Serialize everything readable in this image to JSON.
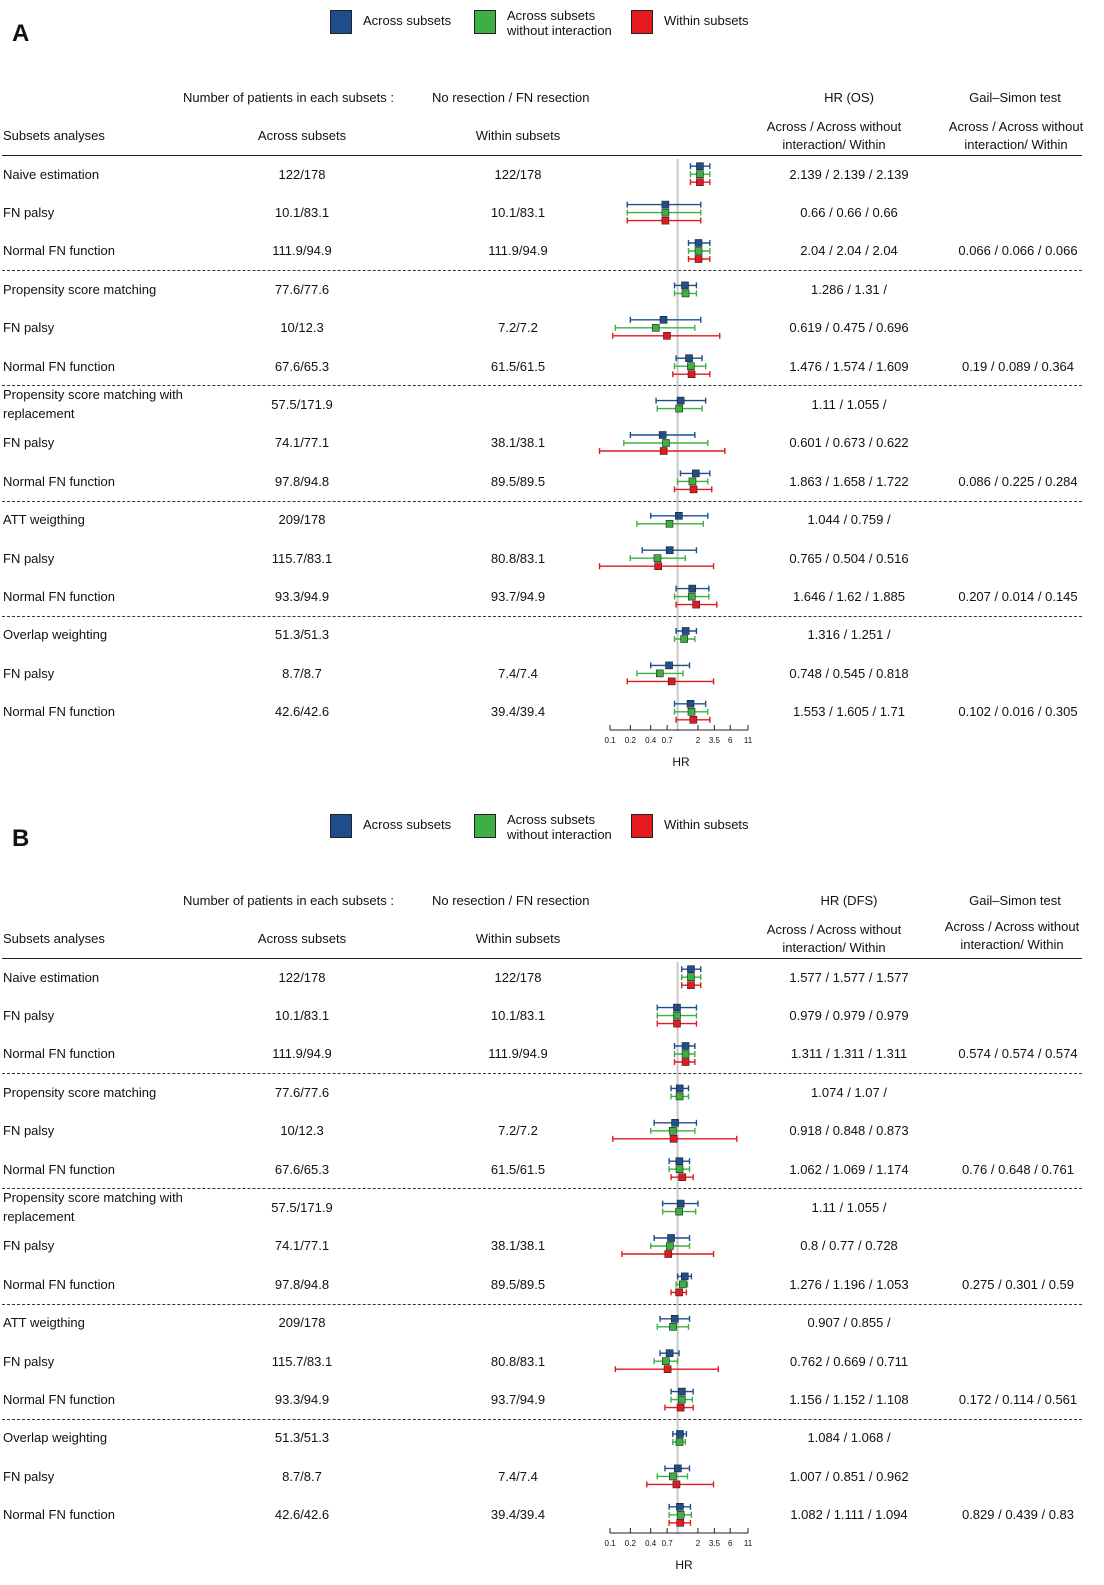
{
  "legend": {
    "across": "Across subsets",
    "across_wo_line1": "Across subsets",
    "across_wo_line2": "without interaction",
    "within": "Within subsets"
  },
  "colors": {
    "across": "#1f4e8c",
    "across_wo": "#3cb043",
    "within": "#e41a1c"
  },
  "headers": {
    "n_label": "Number of patients in each subsets :",
    "n_sub": "No resection / FN resection",
    "subsets": "Subsets analyses",
    "across": "Across subsets",
    "within": "Within subsets",
    "hr_cols": "Across / Across without interaction/ Within",
    "gs": "Gail–Simon test",
    "gs_cols": "Across / Across without interaction/ Within"
  },
  "panels": [
    {
      "label": "A",
      "hr_title": "HR (OS)",
      "axis_label": "HR",
      "rows": [
        {
          "name": "Naive estimation",
          "across": "122/178",
          "within": "122/178",
          "hr": "2.139 / 2.139 / 2.139",
          "gs": ""
        },
        {
          "name": "FN palsy",
          "across": "10.1/83.1",
          "within": "10.1/83.1",
          "hr": "0.66 / 0.66 / 0.66",
          "gs": ""
        },
        {
          "name": "Normal FN function",
          "across": "111.9/94.9",
          "within": "111.9/94.9",
          "hr": "2.04 / 2.04 / 2.04",
          "gs": "0.066 / 0.066 / 0.066"
        },
        {
          "name": "Propensity score matching",
          "across": "77.6/77.6",
          "within": "",
          "hr": "1.286 / 1.31 /",
          "gs": ""
        },
        {
          "name": "FN palsy",
          "across": "10/12.3",
          "within": "7.2/7.2",
          "hr": "0.619 / 0.475 / 0.696",
          "gs": ""
        },
        {
          "name": "Normal FN function",
          "across": "67.6/65.3",
          "within": "61.5/61.5",
          "hr": "1.476 / 1.574 / 1.609",
          "gs": "0.19 / 0.089 / 0.364"
        },
        {
          "name": "Propensity score matching with replacement",
          "across": "57.5/171.9",
          "within": "",
          "hr": "1.11 / 1.055 /",
          "gs": ""
        },
        {
          "name": "FN palsy",
          "across": "74.1/77.1",
          "within": "38.1/38.1",
          "hr": "0.601 / 0.673 / 0.622",
          "gs": ""
        },
        {
          "name": "Normal FN function",
          "across": "97.8/94.8",
          "within": "89.5/89.5",
          "hr": "1.863 / 1.658 / 1.722",
          "gs": "0.086 / 0.225 / 0.284"
        },
        {
          "name": "ATT weigthing",
          "across": "209/178",
          "within": "",
          "hr": "1.044 / 0.759 /",
          "gs": ""
        },
        {
          "name": "FN palsy",
          "across": "115.7/83.1",
          "within": "80.8/83.1",
          "hr": "0.765 / 0.504 / 0.516",
          "gs": ""
        },
        {
          "name": "Normal FN function",
          "across": "93.3/94.9",
          "within": "93.7/94.9",
          "hr": "1.646 / 1.62 / 1.885",
          "gs": "0.207 / 0.014 / 0.145"
        },
        {
          "name": "Overlap weighting",
          "across": "51.3/51.3",
          "within": "",
          "hr": "1.316 / 1.251 /",
          "gs": ""
        },
        {
          "name": "FN palsy",
          "across": "8.7/8.7",
          "within": "7.4/7.4",
          "hr": "0.748 / 0.545 / 0.818",
          "gs": ""
        },
        {
          "name": "Normal FN function",
          "across": "42.6/42.6",
          "within": "39.4/39.4",
          "hr": "1.553 / 1.605 / 1.71",
          "gs": "0.102 / 0.016 / 0.305"
        }
      ]
    },
    {
      "label": "B",
      "hr_title": "HR (DFS)",
      "axis_label": "HR",
      "rows": [
        {
          "name": "Naive estimation",
          "across": "122/178",
          "within": "122/178",
          "hr": "1.577 / 1.577 / 1.577",
          "gs": ""
        },
        {
          "name": "FN palsy",
          "across": "10.1/83.1",
          "within": "10.1/83.1",
          "hr": "0.979 / 0.979 / 0.979",
          "gs": ""
        },
        {
          "name": "Normal FN function",
          "across": "111.9/94.9",
          "within": "111.9/94.9",
          "hr": "1.311 / 1.311 / 1.311",
          "gs": "0.574 / 0.574 / 0.574"
        },
        {
          "name": "Propensity score matching",
          "across": "77.6/77.6",
          "within": "",
          "hr": "1.074 / 1.07 /",
          "gs": ""
        },
        {
          "name": "FN palsy",
          "across": "10/12.3",
          "within": "7.2/7.2",
          "hr": "0.918 / 0.848 / 0.873",
          "gs": ""
        },
        {
          "name": "Normal FN function",
          "across": "67.6/65.3",
          "within": "61.5/61.5",
          "hr": "1.062 / 1.069 / 1.174",
          "gs": "0.76 / 0.648 / 0.761"
        },
        {
          "name": "Propensity score matching with replacement",
          "across": "57.5/171.9",
          "within": "",
          "hr": "1.11 / 1.055 /",
          "gs": ""
        },
        {
          "name": "FN palsy",
          "across": "74.1/77.1",
          "within": "38.1/38.1",
          "hr": "0.8 / 0.77 / 0.728",
          "gs": ""
        },
        {
          "name": "Normal FN function",
          "across": "97.8/94.8",
          "within": "89.5/89.5",
          "hr": "1.276 / 1.196 / 1.053",
          "gs": "0.275 / 0.301 / 0.59"
        },
        {
          "name": "ATT weigthing",
          "across": "209/178",
          "within": "",
          "hr": "0.907 / 0.855 /",
          "gs": ""
        },
        {
          "name": "FN palsy",
          "across": "115.7/83.1",
          "within": "80.8/83.1",
          "hr": "0.762 / 0.669 / 0.711",
          "gs": ""
        },
        {
          "name": "Normal FN function",
          "across": "93.3/94.9",
          "within": "93.7/94.9",
          "hr": "1.156 / 1.152 / 1.108",
          "gs": "0.172 / 0.114 / 0.561"
        },
        {
          "name": "Overlap weighting",
          "across": "51.3/51.3",
          "within": "",
          "hr": "1.084 / 1.068 /",
          "gs": ""
        },
        {
          "name": "FN palsy",
          "across": "8.7/8.7",
          "within": "7.4/7.4",
          "hr": "1.007 / 0.851 / 0.962",
          "gs": ""
        },
        {
          "name": "Normal FN function",
          "across": "42.6/42.6",
          "within": "39.4/39.4",
          "hr": "1.082 / 1.111 / 1.094",
          "gs": "0.829 / 0.439 / 0.83"
        }
      ]
    }
  ],
  "chart_data": [
    {
      "type": "scatter",
      "title": "A",
      "xlabel": "HR",
      "x_scale": "log",
      "xlim": [
        0.1,
        11
      ],
      "x_ticks": [
        "0.1",
        "0.2",
        "0.4",
        "0.7",
        "2",
        "3.5",
        "6",
        "11"
      ],
      "reference_line": 1,
      "series_names": [
        "Across subsets",
        "Across subsets without interaction",
        "Within subsets"
      ],
      "estimates": [
        [
          2.139,
          2.139,
          2.139
        ],
        [
          0.66,
          0.66,
          0.66
        ],
        [
          2.04,
          2.04,
          2.04
        ],
        [
          1.286,
          1.31,
          null
        ],
        [
          0.619,
          0.475,
          0.696
        ],
        [
          1.476,
          1.574,
          1.609
        ],
        [
          1.11,
          1.055,
          null
        ],
        [
          0.601,
          0.673,
          0.622
        ],
        [
          1.863,
          1.658,
          1.722
        ],
        [
          1.044,
          0.759,
          null
        ],
        [
          0.765,
          0.504,
          0.516
        ],
        [
          1.646,
          1.62,
          1.885
        ],
        [
          1.316,
          1.251,
          null
        ],
        [
          0.748,
          0.545,
          0.818
        ],
        [
          1.553,
          1.605,
          1.71
        ]
      ],
      "ci": [
        [
          [
            1.55,
            3.0
          ],
          [
            1.55,
            3.0
          ],
          [
            1.55,
            3.0
          ]
        ],
        [
          [
            0.18,
            2.2
          ],
          [
            0.18,
            2.2
          ],
          [
            0.18,
            2.2
          ]
        ],
        [
          [
            1.45,
            3.0
          ],
          [
            1.45,
            3.0
          ],
          [
            1.45,
            3.0
          ]
        ],
        [
          [
            0.9,
            1.9
          ],
          [
            0.9,
            1.9
          ],
          null
        ],
        [
          [
            0.2,
            2.2
          ],
          [
            0.12,
            1.8
          ],
          [
            0.11,
            4.2
          ]
        ],
        [
          [
            0.95,
            2.3
          ],
          [
            0.9,
            2.6
          ],
          [
            0.85,
            3.0
          ]
        ],
        [
          [
            0.48,
            2.6
          ],
          [
            0.5,
            2.3
          ],
          null
        ],
        [
          [
            0.2,
            1.8
          ],
          [
            0.16,
            2.8
          ],
          [
            0.07,
            5.0
          ]
        ],
        [
          [
            1.1,
            3.0
          ],
          [
            1.0,
            2.8
          ],
          [
            0.9,
            3.2
          ]
        ],
        [
          [
            0.4,
            2.8
          ],
          [
            0.25,
            2.4
          ],
          null
        ],
        [
          [
            0.3,
            1.9
          ],
          [
            0.2,
            1.3
          ],
          [
            0.07,
            3.4
          ]
        ],
        [
          [
            0.95,
            2.9
          ],
          [
            0.9,
            2.9
          ],
          [
            0.95,
            3.8
          ]
        ],
        [
          [
            0.95,
            1.9
          ],
          [
            0.9,
            1.8
          ],
          null
        ],
        [
          [
            0.4,
            1.5
          ],
          [
            0.25,
            1.2
          ],
          [
            0.18,
            3.4
          ]
        ],
        [
          [
            0.9,
            2.6
          ],
          [
            0.9,
            2.8
          ],
          [
            0.95,
            3.0
          ]
        ]
      ]
    },
    {
      "type": "scatter",
      "title": "B",
      "xlabel": "HR",
      "x_scale": "log",
      "xlim": [
        0.1,
        11
      ],
      "x_ticks": [
        "0.1",
        "0.2",
        "0.4",
        "0.7",
        "2",
        "3.5",
        "6",
        "11"
      ],
      "reference_line": 1,
      "series_names": [
        "Across subsets",
        "Across subsets without interaction",
        "Within subsets"
      ],
      "estimates": [
        [
          1.577,
          1.577,
          1.577
        ],
        [
          0.979,
          0.979,
          0.979
        ],
        [
          1.311,
          1.311,
          1.311
        ],
        [
          1.074,
          1.07,
          null
        ],
        [
          0.918,
          0.848,
          0.873
        ],
        [
          1.062,
          1.069,
          1.174
        ],
        [
          1.11,
          1.055,
          null
        ],
        [
          0.8,
          0.77,
          0.728
        ],
        [
          1.276,
          1.196,
          1.053
        ],
        [
          0.907,
          0.855,
          null
        ],
        [
          0.762,
          0.669,
          0.711
        ],
        [
          1.156,
          1.152,
          1.108
        ],
        [
          1.084,
          1.068,
          null
        ],
        [
          1.007,
          0.851,
          0.962
        ],
        [
          1.082,
          1.111,
          1.094
        ]
      ],
      "ci": [
        [
          [
            1.15,
            2.2
          ],
          [
            1.15,
            2.2
          ],
          [
            1.15,
            2.2
          ]
        ],
        [
          [
            0.5,
            1.9
          ],
          [
            0.5,
            1.9
          ],
          [
            0.5,
            1.9
          ]
        ],
        [
          [
            0.9,
            1.8
          ],
          [
            0.9,
            1.8
          ],
          [
            0.9,
            1.8
          ]
        ],
        [
          [
            0.8,
            1.45
          ],
          [
            0.8,
            1.45
          ],
          null
        ],
        [
          [
            0.45,
            1.9
          ],
          [
            0.4,
            1.8
          ],
          [
            0.11,
            7.5
          ]
        ],
        [
          [
            0.75,
            1.5
          ],
          [
            0.75,
            1.5
          ],
          [
            0.8,
            1.7
          ]
        ],
        [
          [
            0.6,
            2.0
          ],
          [
            0.6,
            1.85
          ],
          null
        ],
        [
          [
            0.45,
            1.5
          ],
          [
            0.4,
            1.5
          ],
          [
            0.15,
            3.4
          ]
        ],
        [
          [
            1.0,
            1.6
          ],
          [
            0.95,
            1.4
          ],
          [
            0.8,
            1.35
          ]
        ],
        [
          [
            0.55,
            1.5
          ],
          [
            0.5,
            1.45
          ],
          null
        ],
        [
          [
            0.55,
            1.05
          ],
          [
            0.45,
            1.0
          ],
          [
            0.12,
            4.0
          ]
        ],
        [
          [
            0.8,
            1.7
          ],
          [
            0.8,
            1.65
          ],
          [
            0.65,
            1.7
          ]
        ],
        [
          [
            0.85,
            1.35
          ],
          [
            0.85,
            1.3
          ],
          null
        ],
        [
          [
            0.65,
            1.5
          ],
          [
            0.5,
            1.4
          ],
          [
            0.35,
            3.4
          ]
        ],
        [
          [
            0.75,
            1.55
          ],
          [
            0.75,
            1.6
          ],
          [
            0.75,
            1.55
          ]
        ]
      ]
    }
  ]
}
